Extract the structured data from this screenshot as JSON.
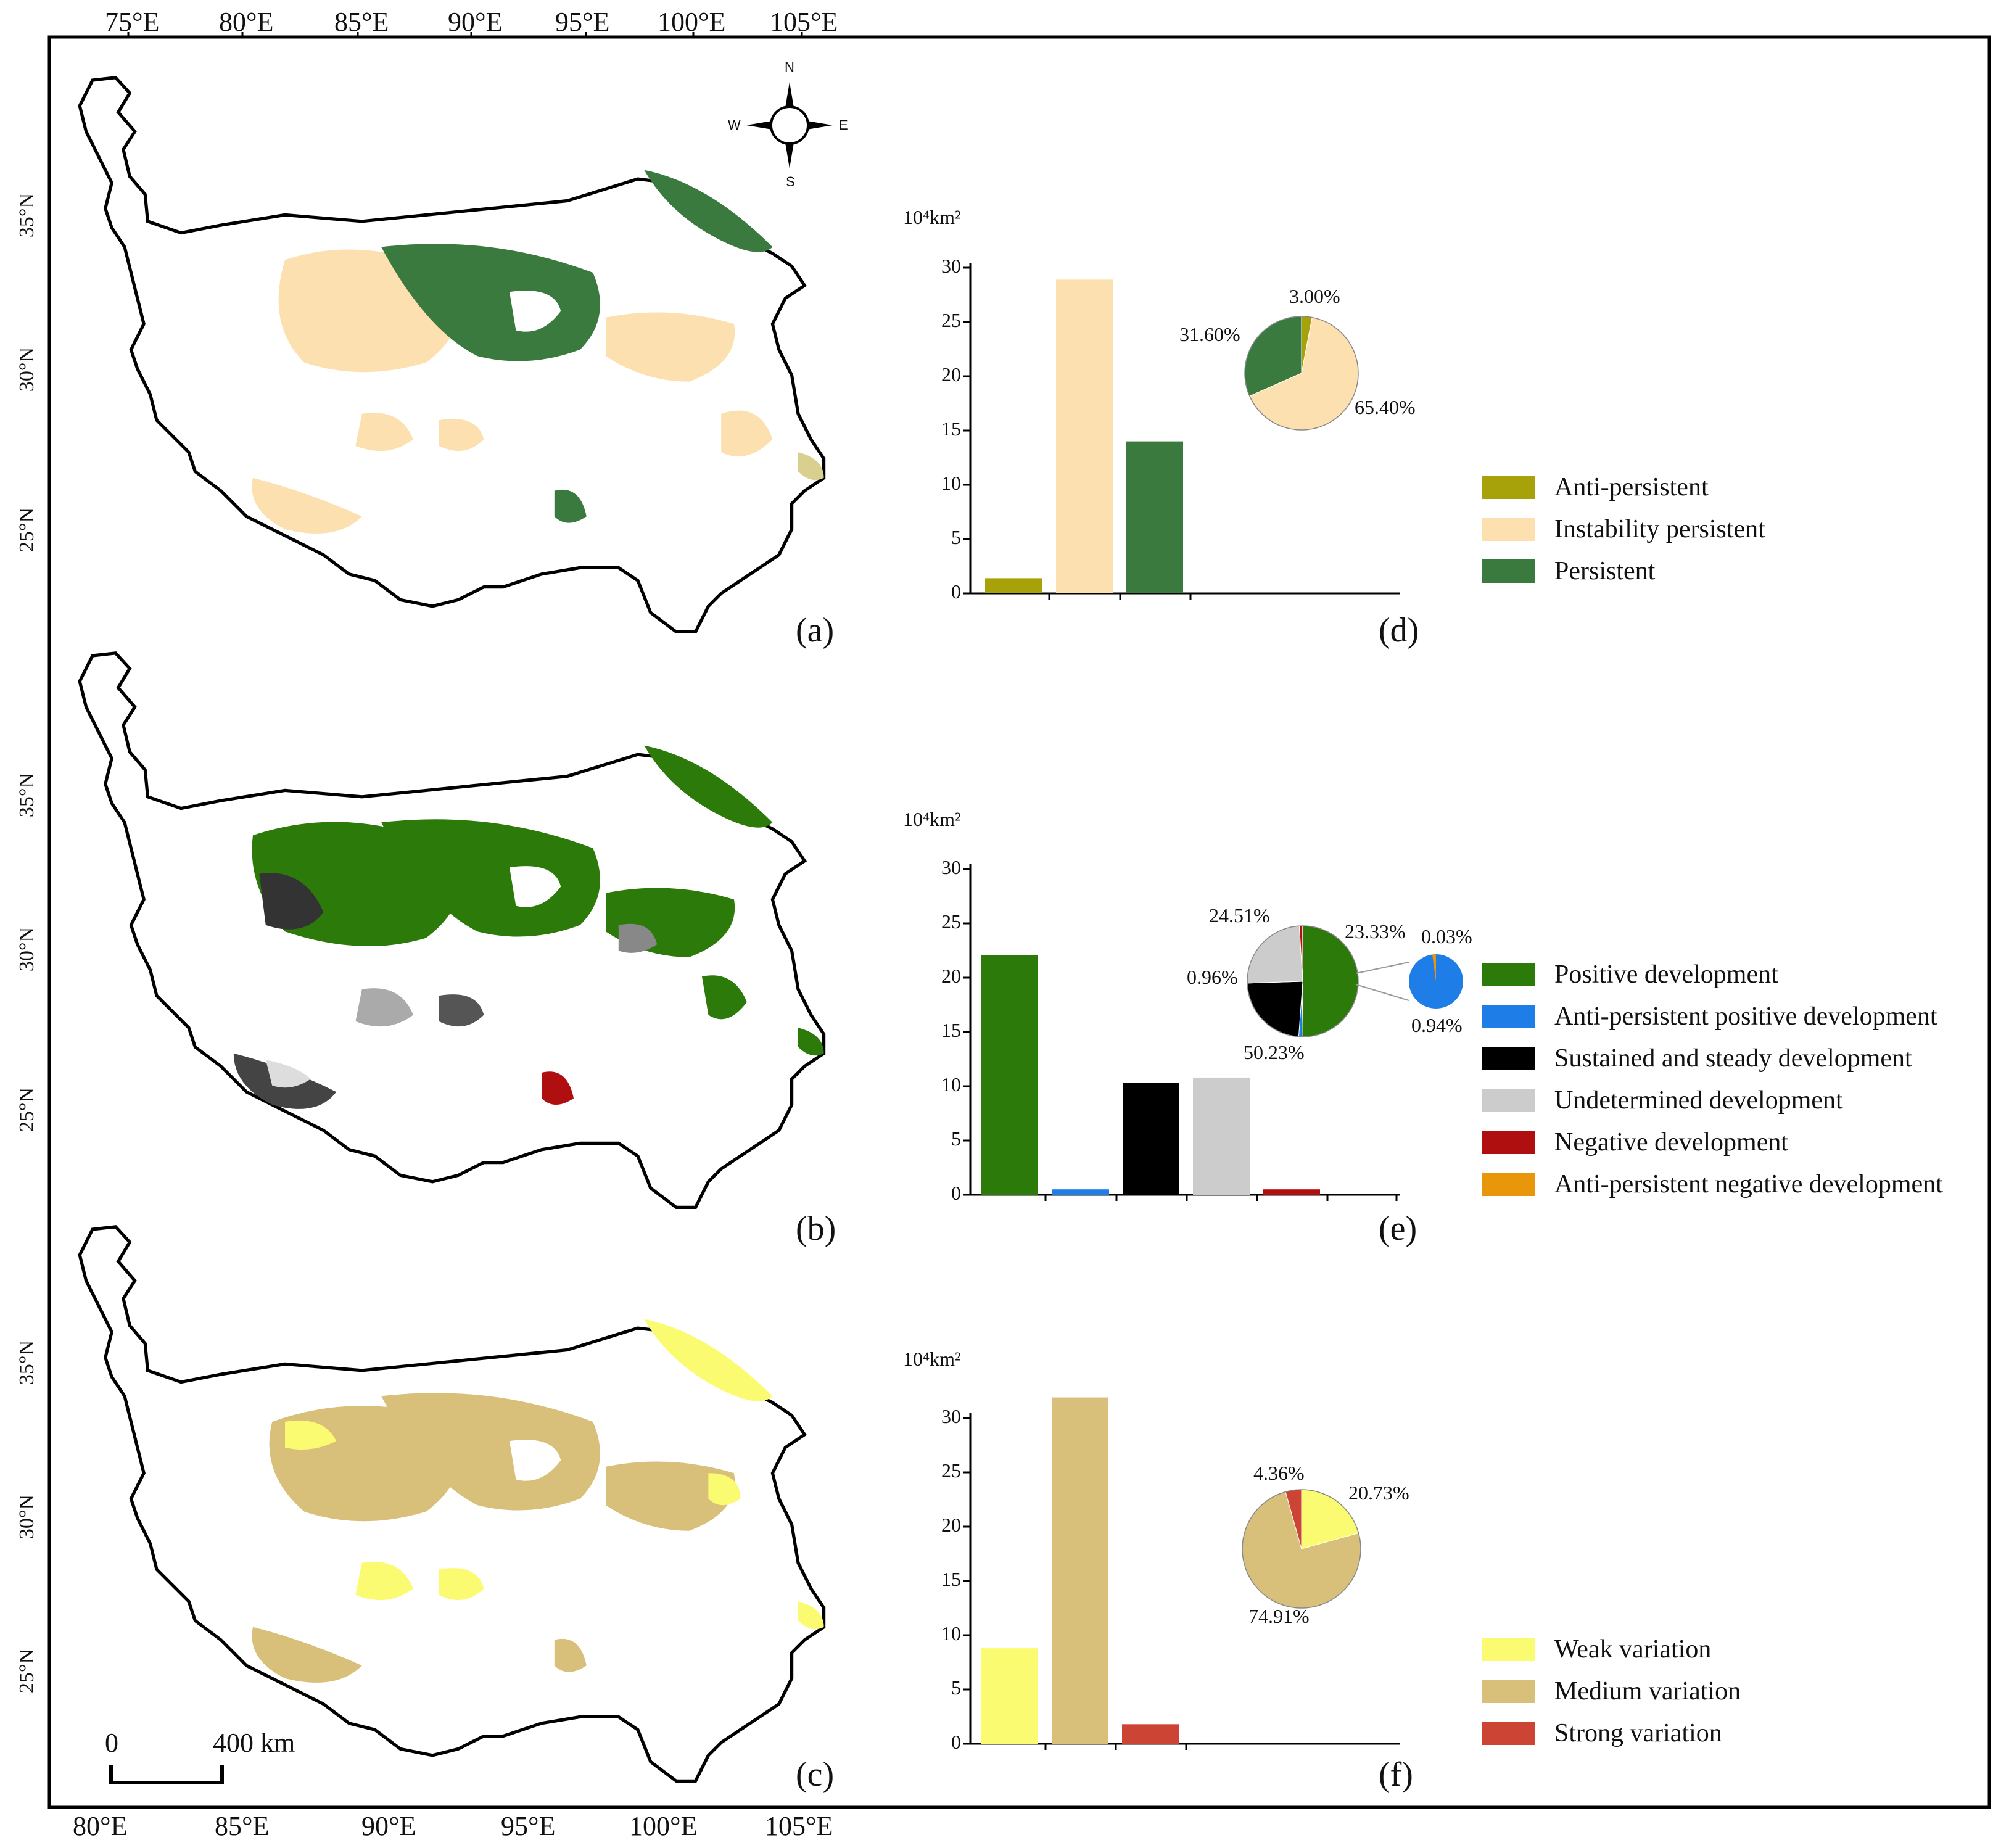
{
  "coords": {
    "top_lon": [
      "75°E",
      "80°E",
      "85°E",
      "90°E",
      "95°E",
      "100°E",
      "105°E"
    ],
    "bottom_lon": [
      "80°E",
      "85°E",
      "90°E",
      "95°E",
      "100°E",
      "105°E"
    ],
    "lat_a": [
      "35°N",
      "30°N",
      "25°N"
    ],
    "lat_b": [
      "35°N",
      "30°N",
      "25°N"
    ],
    "lat_c": [
      "35°N",
      "30°N",
      "25°N"
    ]
  },
  "compass": {
    "n": "N",
    "s": "S",
    "e": "E",
    "w": "W"
  },
  "scale_bar": {
    "start": "0",
    "end": "400 km"
  },
  "panels": {
    "a": "(a)",
    "b": "(b)",
    "c": "(c)",
    "d": "(d)",
    "e": "(e)",
    "f": "(f)"
  },
  "colors": {
    "anti_persistent": "#a8a20a",
    "instability": "#fce0b0",
    "persistent": "#3b7a3e",
    "positive": "#2c7a0a",
    "anti_pos": "#1f7de8",
    "sustained": "#000000",
    "undetermined": "#cccccc",
    "negative": "#b00f0f",
    "anti_neg": "#e8960a",
    "weak": "#fbfb72",
    "medium": "#d9c07a",
    "strong": "#cc4433"
  },
  "chart_data": [
    {
      "type": "bar",
      "id": "d",
      "unit": "10⁴km²",
      "ylim": [
        0,
        30
      ],
      "yticks": [
        "0",
        "5",
        "10",
        "15",
        "20",
        "25",
        "30"
      ],
      "categories": [
        "Anti-persistent",
        "Instability persistent",
        "Persistent"
      ],
      "values": [
        1.4,
        28.9,
        14.0
      ],
      "legend": [
        "Anti-persistent",
        "Instability persistent",
        "Persistent"
      ],
      "pie": {
        "slices": [
          3.0,
          65.4,
          31.6
        ],
        "labels": [
          "3.00%",
          "65.40%",
          "31.60%"
        ]
      }
    },
    {
      "type": "bar",
      "id": "e",
      "unit": "10⁴km²",
      "ylim": [
        0,
        30
      ],
      "yticks": [
        "0",
        "5",
        "10",
        "15",
        "20",
        "25",
        "30"
      ],
      "categories": [
        "Positive development",
        "Anti-persistent positive development",
        "Sustained and steady development",
        "Undetermined development",
        "Negative development",
        "Anti-persistent negative development"
      ],
      "values": [
        22.1,
        0.5,
        10.3,
        10.8,
        0.5,
        0.0
      ],
      "legend": [
        "Positive development",
        "Anti-persistent positive development",
        "Sustained and steady development",
        "Undetermined development",
        "Negative development",
        "Anti-persistent negative development"
      ],
      "pie": {
        "slices": [
          50.23,
          0.94,
          23.33,
          24.51,
          0.96,
          0.03
        ],
        "labels": [
          "50.23%",
          "0.94%",
          "23.33%",
          "24.51%",
          "0.96%",
          "0.03%"
        ]
      }
    },
    {
      "type": "bar",
      "id": "f",
      "unit": "10⁴km²",
      "ylim": [
        0,
        30
      ],
      "yticks": [
        "0",
        "5",
        "10",
        "15",
        "20",
        "25",
        "30"
      ],
      "categories": [
        "Weak variation",
        "Medium variation",
        "Strong variation"
      ],
      "values": [
        8.8,
        31.9,
        1.8
      ],
      "legend": [
        "Weak variation",
        "Medium variation",
        "Strong variation"
      ],
      "pie": {
        "slices": [
          20.73,
          74.91,
          4.36
        ],
        "labels": [
          "20.73%",
          "74.91%",
          "4.36%"
        ]
      }
    }
  ]
}
